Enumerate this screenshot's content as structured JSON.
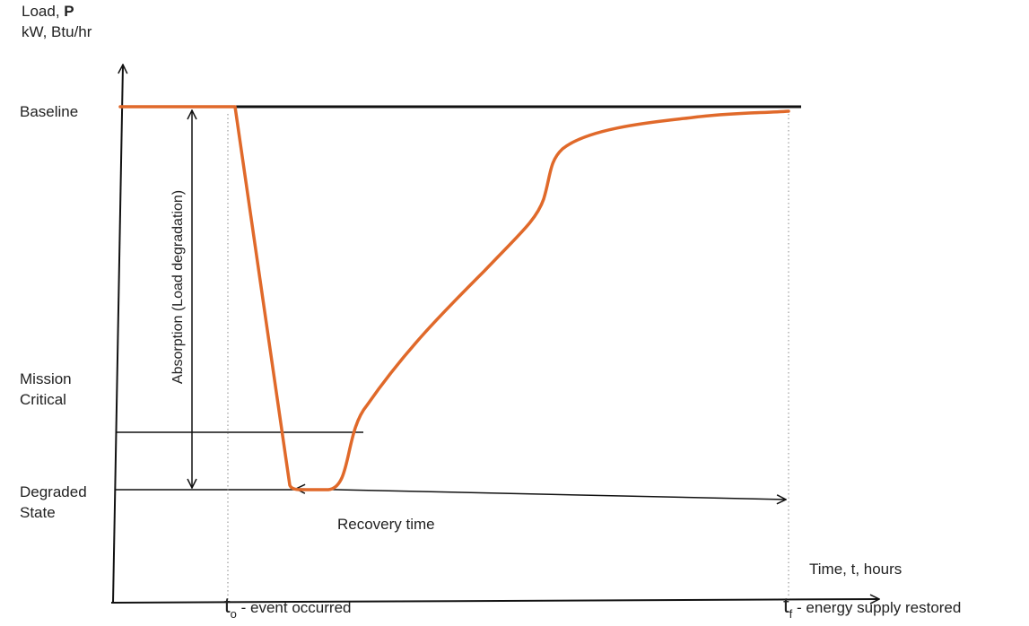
{
  "y_axis": {
    "title": "Load,",
    "title_bold": "P",
    "units": "kW, Btu/hr"
  },
  "x_axis": {
    "title": "Time, t, hours"
  },
  "levels": {
    "baseline": "Baseline",
    "mission_critical_line1": "Mission",
    "mission_critical_line2": "Critical",
    "degraded_line1": "Degraded",
    "degraded_line2": "State"
  },
  "annotations": {
    "absorption": "Absorption (Load degradation)",
    "recovery": "Recovery time"
  },
  "times": {
    "t0_symbol": "t",
    "t0_sub": "o",
    "t0_label": "- event occurred",
    "tf_symbol": "t",
    "tf_sub": "f",
    "tf_label": "- energy supply restored"
  },
  "colors": {
    "curve": "#e0692a",
    "axis": "#111111",
    "guide": "#888888"
  }
}
